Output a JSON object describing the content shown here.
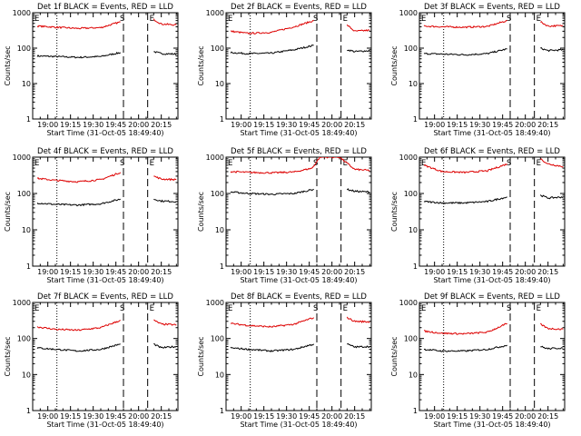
{
  "window": {
    "width": 640,
    "height": 480
  },
  "colors": {
    "events": "#000000",
    "lld": "#dd0000",
    "background": "#ffffff",
    "frame": "#000000"
  },
  "common": {
    "ylabel": "Counts/sec",
    "xlabel": "Start Time (31-Oct-05 18:49:40)",
    "xticks": [
      "19:00",
      "19:15",
      "19:30",
      "19:45",
      "20:00",
      "20:15"
    ],
    "yticks": [
      "1",
      "10",
      "100",
      "1000"
    ],
    "marker_left": "E",
    "marker_mid": "S",
    "marker_right": "E"
  },
  "chart_data": [
    {
      "type": "line",
      "title": "Det 1f BLACK = Events, RED = LLD",
      "xlabel": "Start Time (31-Oct-05 18:49:40)",
      "ylabel": "Counts/sec",
      "yscale": "log",
      "ylim": [
        1,
        1000
      ],
      "x_ticks": [
        "19:00",
        "19:15",
        "19:30",
        "19:45",
        "20:00",
        "20:15"
      ],
      "vlines": [
        {
          "style": "dotted",
          "x": "19:06"
        },
        {
          "style": "dashed",
          "x": "19:50"
        },
        {
          "style": "dashed",
          "x": "20:06"
        }
      ],
      "series": [
        {
          "name": "Events",
          "color": "#000000",
          "segments": [
            {
              "x": [
                "18:53",
                "19:05",
                "19:20",
                "19:35",
                "19:48"
              ],
              "y": [
                60,
                58,
                55,
                58,
                75
              ]
            },
            {
              "x": [
                "20:10",
                "20:15",
                "20:25"
              ],
              "y": [
                80,
                70,
                68
              ]
            }
          ]
        },
        {
          "name": "LLD",
          "color": "#dd0000",
          "segments": [
            {
              "x": [
                "18:53",
                "19:05",
                "19:20",
                "19:35",
                "19:48"
              ],
              "y": [
                420,
                390,
                360,
                380,
                550
              ]
            },
            {
              "x": [
                "20:10",
                "20:15",
                "20:25"
              ],
              "y": [
                650,
                480,
                450
              ]
            }
          ]
        }
      ]
    },
    {
      "type": "line",
      "title": "Det 2f BLACK = Events, RED = LLD",
      "xlabel": "Start Time (31-Oct-05 18:49:40)",
      "ylabel": "Counts/sec",
      "yscale": "log",
      "ylim": [
        1,
        1000
      ],
      "x_ticks": [
        "19:00",
        "19:15",
        "19:30",
        "19:45",
        "20:00",
        "20:15"
      ],
      "vlines": [
        {
          "style": "dotted",
          "x": "19:06"
        },
        {
          "style": "dashed",
          "x": "19:50"
        },
        {
          "style": "dashed",
          "x": "20:06"
        }
      ],
      "series": [
        {
          "name": "Events",
          "color": "#000000",
          "segments": [
            {
              "x": [
                "18:53",
                "19:05",
                "19:20",
                "19:35",
                "19:48"
              ],
              "y": [
                75,
                70,
                72,
                90,
                120
              ]
            },
            {
              "x": [
                "20:10",
                "20:15",
                "20:25"
              ],
              "y": [
                90,
                80,
                85
              ]
            }
          ]
        },
        {
          "name": "LLD",
          "color": "#dd0000",
          "segments": [
            {
              "x": [
                "18:53",
                "19:05",
                "19:20",
                "19:35",
                "19:48"
              ],
              "y": [
                300,
                260,
                280,
                400,
                600
              ]
            },
            {
              "x": [
                "20:10",
                "20:15",
                "20:25"
              ],
              "y": [
                450,
                300,
                320
              ]
            }
          ]
        }
      ]
    },
    {
      "type": "line",
      "title": "Det 3f BLACK = Events, RED = LLD",
      "xlabel": "Start Time (31-Oct-05 18:49:40)",
      "ylabel": "Counts/sec",
      "yscale": "log",
      "ylim": [
        1,
        1000
      ],
      "x_ticks": [
        "19:00",
        "19:15",
        "19:30",
        "19:45",
        "20:00",
        "20:15"
      ],
      "vlines": [
        {
          "style": "dotted",
          "x": "19:06"
        },
        {
          "style": "dashed",
          "x": "19:50"
        },
        {
          "style": "dashed",
          "x": "20:06"
        }
      ],
      "series": [
        {
          "name": "Events",
          "color": "#000000",
          "segments": [
            {
              "x": [
                "18:53",
                "19:05",
                "19:20",
                "19:35",
                "19:48"
              ],
              "y": [
                70,
                68,
                65,
                70,
                95
              ]
            },
            {
              "x": [
                "20:10",
                "20:15",
                "20:25"
              ],
              "y": [
                100,
                85,
                90
              ]
            }
          ]
        },
        {
          "name": "LLD",
          "color": "#dd0000",
          "segments": [
            {
              "x": [
                "18:53",
                "19:05",
                "19:20",
                "19:35",
                "19:48"
              ],
              "y": [
                420,
                400,
                390,
                410,
                600
              ]
            },
            {
              "x": [
                "20:10",
                "20:15",
                "20:25"
              ],
              "y": [
                550,
                420,
                430
              ]
            }
          ]
        }
      ]
    },
    {
      "type": "line",
      "title": "Det 4f BLACK = Events, RED = LLD",
      "xlabel": "Start Time (31-Oct-05 18:49:40)",
      "ylabel": "Counts/sec",
      "yscale": "log",
      "ylim": [
        1,
        1000
      ],
      "x_ticks": [
        "19:00",
        "19:15",
        "19:30",
        "19:45",
        "20:00",
        "20:15"
      ],
      "vlines": [
        {
          "style": "dotted",
          "x": "19:06"
        },
        {
          "style": "dashed",
          "x": "19:50"
        },
        {
          "style": "dashed",
          "x": "20:06"
        }
      ],
      "series": [
        {
          "name": "Events",
          "color": "#000000",
          "segments": [
            {
              "x": [
                "18:53",
                "19:05",
                "19:20",
                "19:35",
                "19:48"
              ],
              "y": [
                55,
                50,
                48,
                52,
                70
              ]
            },
            {
              "x": [
                "20:10",
                "20:15",
                "20:25"
              ],
              "y": [
                70,
                62,
                60
              ]
            }
          ]
        },
        {
          "name": "LLD",
          "color": "#dd0000",
          "segments": [
            {
              "x": [
                "18:53",
                "19:05",
                "19:20",
                "19:35",
                "19:48"
              ],
              "y": [
                260,
                230,
                210,
                240,
                380
              ]
            },
            {
              "x": [
                "20:10",
                "20:15",
                "20:25"
              ],
              "y": [
                300,
                250,
                240
              ]
            }
          ]
        }
      ]
    },
    {
      "type": "line",
      "title": "Det 5f BLACK = Events, RED = LLD",
      "xlabel": "Start Time (31-Oct-05 18:49:40)",
      "ylabel": "Counts/sec",
      "yscale": "log",
      "ylim": [
        1,
        1000
      ],
      "x_ticks": [
        "19:00",
        "19:15",
        "19:30",
        "19:45",
        "20:00",
        "20:15"
      ],
      "vlines": [
        {
          "style": "dotted",
          "x": "19:06"
        },
        {
          "style": "dashed",
          "x": "19:50"
        },
        {
          "style": "dashed",
          "x": "20:06"
        }
      ],
      "series": [
        {
          "name": "Events",
          "color": "#000000",
          "segments": [
            {
              "x": [
                "18:53",
                "19:05",
                "19:20",
                "19:35",
                "19:48"
              ],
              "y": [
                110,
                100,
                95,
                100,
                130
              ]
            },
            {
              "x": [
                "20:10",
                "20:15",
                "20:25"
              ],
              "y": [
                130,
                115,
                110
              ]
            }
          ]
        },
        {
          "name": "LLD",
          "color": "#dd0000",
          "segments": [
            {
              "x": [
                "18:53",
                "19:05",
                "19:20",
                "19:35",
                "19:47",
                "19:52",
                "20:00",
                "20:05",
                "20:15",
                "20:25"
              ],
              "y": [
                400,
                380,
                370,
                390,
                500,
                1000,
                1000,
                1000,
                460,
                430
              ]
            }
          ]
        }
      ]
    },
    {
      "type": "line",
      "title": "Det 6f BLACK = Events, RED = LLD",
      "xlabel": "Start Time (31-Oct-05 18:49:40)",
      "ylabel": "Counts/sec",
      "yscale": "log",
      "ylim": [
        1,
        1000
      ],
      "x_ticks": [
        "19:00",
        "19:15",
        "19:30",
        "19:45",
        "20:00",
        "20:15"
      ],
      "vlines": [
        {
          "style": "dotted",
          "x": "19:06"
        },
        {
          "style": "dashed",
          "x": "19:50"
        },
        {
          "style": "dashed",
          "x": "20:06"
        }
      ],
      "series": [
        {
          "name": "Events",
          "color": "#000000",
          "segments": [
            {
              "x": [
                "18:53",
                "19:05",
                "19:20",
                "19:35",
                "19:48"
              ],
              "y": [
                60,
                55,
                55,
                60,
                80
              ]
            },
            {
              "x": [
                "20:10",
                "20:15",
                "20:25"
              ],
              "y": [
                90,
                75,
                80
              ]
            }
          ]
        },
        {
          "name": "LLD",
          "color": "#dd0000",
          "segments": [
            {
              "x": [
                "18:53",
                "19:05",
                "19:20",
                "19:35",
                "19:48"
              ],
              "y": [
                600,
                400,
                380,
                420,
                650
              ]
            },
            {
              "x": [
                "20:10",
                "20:15",
                "20:25"
              ],
              "y": [
                900,
                650,
                550
              ]
            }
          ]
        }
      ]
    },
    {
      "type": "line",
      "title": "Det 7f BLACK = Events, RED = LLD",
      "xlabel": "Start Time (31-Oct-05 18:49:40)",
      "ylabel": "Counts/sec",
      "yscale": "log",
      "ylim": [
        1,
        1000
      ],
      "x_ticks": [
        "19:00",
        "19:15",
        "19:30",
        "19:45",
        "20:00",
        "20:15"
      ],
      "vlines": [
        {
          "style": "dotted",
          "x": "19:06"
        },
        {
          "style": "dashed",
          "x": "19:50"
        },
        {
          "style": "dashed",
          "x": "20:06"
        }
      ],
      "series": [
        {
          "name": "Events",
          "color": "#000000",
          "segments": [
            {
              "x": [
                "18:53",
                "19:05",
                "19:20",
                "19:35",
                "19:48"
              ],
              "y": [
                55,
                50,
                45,
                50,
                70
              ]
            },
            {
              "x": [
                "20:10",
                "20:15",
                "20:25"
              ],
              "y": [
                70,
                55,
                60
              ]
            }
          ]
        },
        {
          "name": "LLD",
          "color": "#dd0000",
          "segments": [
            {
              "x": [
                "18:53",
                "19:05",
                "19:20",
                "19:35",
                "19:48"
              ],
              "y": [
                210,
                180,
                170,
                200,
                320
              ]
            },
            {
              "x": [
                "20:10",
                "20:15",
                "20:25"
              ],
              "y": [
                320,
                250,
                240
              ]
            }
          ]
        }
      ]
    },
    {
      "type": "line",
      "title": "Det 8f BLACK = Events, RED = LLD",
      "xlabel": "Start Time (31-Oct-05 18:49:40)",
      "ylabel": "Counts/sec",
      "yscale": "log",
      "ylim": [
        1,
        1000
      ],
      "x_ticks": [
        "19:00",
        "19:15",
        "19:30",
        "19:45",
        "20:00",
        "20:15"
      ],
      "vlines": [
        {
          "style": "dotted",
          "x": "19:06"
        },
        {
          "style": "dashed",
          "x": "19:50"
        },
        {
          "style": "dashed",
          "x": "20:06"
        }
      ],
      "series": [
        {
          "name": "Events",
          "color": "#000000",
          "segments": [
            {
              "x": [
                "18:53",
                "19:05",
                "19:20",
                "19:35",
                "19:48"
              ],
              "y": [
                55,
                50,
                45,
                50,
                70
              ]
            },
            {
              "x": [
                "20:10",
                "20:15",
                "20:25"
              ],
              "y": [
                70,
                58,
                60
              ]
            }
          ]
        },
        {
          "name": "LLD",
          "color": "#dd0000",
          "segments": [
            {
              "x": [
                "18:53",
                "19:05",
                "19:20",
                "19:35",
                "19:48"
              ],
              "y": [
                260,
                230,
                210,
                250,
                380
              ]
            },
            {
              "x": [
                "20:10",
                "20:15",
                "20:25"
              ],
              "y": [
                380,
                300,
                290
              ]
            }
          ]
        }
      ]
    },
    {
      "type": "line",
      "title": "Det 9f BLACK = Events, RED = LLD",
      "xlabel": "Start Time (31-Oct-05 18:49:40)",
      "ylabel": "Counts/sec",
      "yscale": "log",
      "ylim": [
        1,
        1000
      ],
      "x_ticks": [
        "19:00",
        "19:15",
        "19:30",
        "19:45",
        "20:00",
        "20:15"
      ],
      "vlines": [
        {
          "style": "dotted",
          "x": "19:06"
        },
        {
          "style": "dashed",
          "x": "19:50"
        },
        {
          "style": "dashed",
          "x": "20:06"
        }
      ],
      "series": [
        {
          "name": "Events",
          "color": "#000000",
          "segments": [
            {
              "x": [
                "18:53",
                "19:05",
                "19:20",
                "19:35",
                "19:48"
              ],
              "y": [
                50,
                45,
                45,
                50,
                65
              ]
            },
            {
              "x": [
                "20:10",
                "20:15",
                "20:25"
              ],
              "y": [
                60,
                52,
                55
              ]
            }
          ]
        },
        {
          "name": "LLD",
          "color": "#dd0000",
          "segments": [
            {
              "x": [
                "18:53",
                "19:05",
                "19:20",
                "19:35",
                "19:48"
              ],
              "y": [
                160,
                140,
                135,
                150,
                260
              ]
            },
            {
              "x": [
                "20:10",
                "20:15",
                "20:25"
              ],
              "y": [
                250,
                190,
                180
              ]
            }
          ]
        }
      ]
    }
  ]
}
